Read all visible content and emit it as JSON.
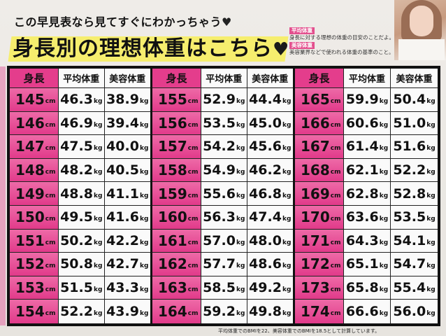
{
  "intro": {
    "text": "この早見表なら見てすぐにわかっちゃう",
    "heart": "♥"
  },
  "title": {
    "text": "身長別の理想体重はこちら",
    "heart": "♥"
  },
  "notes": [
    {
      "tag": "平均体重",
      "text": "身長に対する理想の体重の目安のことだよ。"
    },
    {
      "tag": "美容体重",
      "text": "美容業界などで使われる体重の基準のこと。"
    }
  ],
  "table": {
    "headers": {
      "height": "身長",
      "avg": "平均体重",
      "beauty": "美容体重"
    },
    "height_unit": "cm",
    "weight_unit": "kg",
    "blocks": [
      {
        "rows": [
          {
            "h": "145",
            "avg": "46.3",
            "beauty": "38.9"
          },
          {
            "h": "146",
            "avg": "46.9",
            "beauty": "39.4"
          },
          {
            "h": "147",
            "avg": "47.5",
            "beauty": "40.0"
          },
          {
            "h": "148",
            "avg": "48.2",
            "beauty": "40.5"
          },
          {
            "h": "149",
            "avg": "48.8",
            "beauty": "41.1"
          },
          {
            "h": "150",
            "avg": "49.5",
            "beauty": "41.6"
          },
          {
            "h": "151",
            "avg": "50.2",
            "beauty": "42.2"
          },
          {
            "h": "152",
            "avg": "50.8",
            "beauty": "42.7"
          },
          {
            "h": "153",
            "avg": "51.5",
            "beauty": "43.3"
          },
          {
            "h": "154",
            "avg": "52.2",
            "beauty": "43.9"
          }
        ]
      },
      {
        "rows": [
          {
            "h": "155",
            "avg": "52.9",
            "beauty": "44.4"
          },
          {
            "h": "156",
            "avg": "53.5",
            "beauty": "45.0"
          },
          {
            "h": "157",
            "avg": "54.2",
            "beauty": "45.6"
          },
          {
            "h": "158",
            "avg": "54.9",
            "beauty": "46.2"
          },
          {
            "h": "159",
            "avg": "55.6",
            "beauty": "46.8"
          },
          {
            "h": "160",
            "avg": "56.3",
            "beauty": "47.4"
          },
          {
            "h": "161",
            "avg": "57.0",
            "beauty": "48.0"
          },
          {
            "h": "162",
            "avg": "57.7",
            "beauty": "48.6"
          },
          {
            "h": "163",
            "avg": "58.5",
            "beauty": "49.2"
          },
          {
            "h": "164",
            "avg": "59.2",
            "beauty": "49.8"
          }
        ]
      },
      {
        "rows": [
          {
            "h": "165",
            "avg": "59.9",
            "beauty": "50.4"
          },
          {
            "h": "166",
            "avg": "60.6",
            "beauty": "51.0"
          },
          {
            "h": "167",
            "avg": "61.4",
            "beauty": "51.6"
          },
          {
            "h": "168",
            "avg": "62.1",
            "beauty": "52.2"
          },
          {
            "h": "169",
            "avg": "62.8",
            "beauty": "52.8"
          },
          {
            "h": "170",
            "avg": "63.6",
            "beauty": "53.5"
          },
          {
            "h": "171",
            "avg": "64.3",
            "beauty": "54.1"
          },
          {
            "h": "172",
            "avg": "65.1",
            "beauty": "54.7"
          },
          {
            "h": "173",
            "avg": "65.8",
            "beauty": "55.4"
          },
          {
            "h": "174",
            "avg": "66.6",
            "beauty": "56.0"
          }
        ]
      }
    ]
  },
  "footnote": "平均体重でのBMIを22、美容体重でのBMIを18.5として計算しています。",
  "colors": {
    "accent_pink": "#e43d8c",
    "title_highlight": "#f6ee6e",
    "border": "#111111"
  }
}
